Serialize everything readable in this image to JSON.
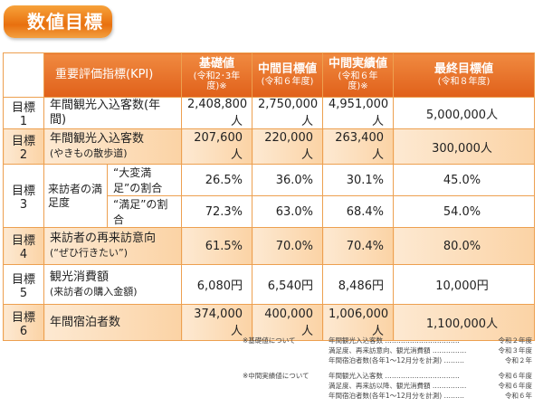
{
  "title": "数値目標",
  "header": {
    "kpi": "重要評価指標(KPI)",
    "cols": [
      {
        "t": "基礎値",
        "s": "(令和2･3年度)※"
      },
      {
        "t": "中間目標値",
        "s": "(令和６年度)"
      },
      {
        "t": "中間実績値",
        "s": "(令和６年度)※"
      },
      {
        "t": "最終目標値",
        "s": "(令和８年度)"
      }
    ]
  },
  "rows": [
    {
      "label": "目標 1",
      "kpi": "年間観光入込客数(年間)",
      "sub": "",
      "v": [
        "2,408,800人",
        "2,750,000人",
        "4,951,000人",
        "5,000,000人"
      ]
    },
    {
      "label": "目標 2",
      "kpi": "年間観光入込客数",
      "sub": "(やきもの散歩道)",
      "v": [
        "207,600人",
        "220,000人",
        "263,400人",
        "300,000人"
      ]
    },
    {
      "label": "目標 3",
      "kpi": "来訪者の満足度",
      "a": "“大変満足”の割合",
      "b": "“満足”の割合",
      "va": [
        "26.5%",
        "36.0%",
        "30.1%",
        "45.0%"
      ],
      "vb": [
        "72.3%",
        "63.0%",
        "68.4%",
        "54.0%"
      ]
    },
    {
      "label": "目標 4",
      "kpi": "来訪者の再来訪意向",
      "sub": "(“ぜひ行きたい”)",
      "v": [
        "61.5%",
        "70.0%",
        "70.4%",
        "80.0%"
      ]
    },
    {
      "label": "目標 5",
      "kpi": "観光消費額",
      "sub": "(来訪者の購入金額)",
      "v": [
        "6,080円",
        "6,540円",
        "8,486円",
        "10,000円"
      ]
    },
    {
      "label": "目標 6",
      "kpi": "年間宿泊者数",
      "sub": "",
      "v": [
        "374,000人",
        "400,000人",
        "1,006,000人",
        "1,100,000人"
      ]
    }
  ],
  "notes": [
    {
      "h": "※基礎値について",
      "items": [
        [
          "年間観光入込客数 ……………………………",
          "令和２年度"
        ],
        [
          "満足度、再来訪意向、観光消費額 ……………",
          "令和３年度"
        ],
        [
          "年間宿泊者数(各年1～12月分を計測) ………",
          "令和２年"
        ]
      ]
    },
    {
      "h": "※中間実績値について",
      "items": [
        [
          "年間観光入込客数 ……………………………",
          "令和６年度"
        ],
        [
          "満足度、再来訪以降、観光消費額 ……………",
          "令和６年度"
        ],
        [
          "年間宿泊者数(各年1～12月分を計測) ………",
          "令和６年"
        ]
      ]
    }
  ]
}
